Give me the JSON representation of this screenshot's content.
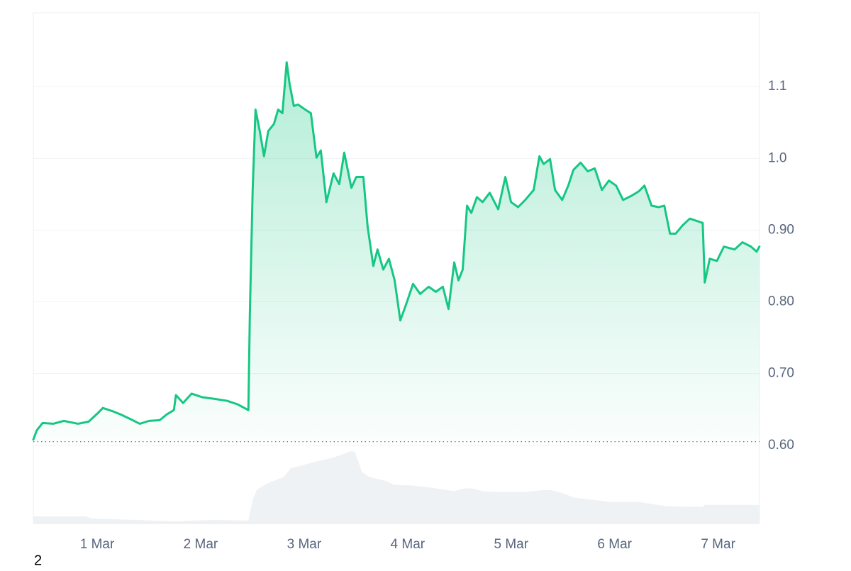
{
  "chart_data": {
    "type": "line",
    "xlim": [
      0.383,
      7.4
    ],
    "xticks": [
      {
        "value": 1,
        "label": "1 Mar"
      },
      {
        "value": 2,
        "label": "2 Mar"
      },
      {
        "value": 3,
        "label": "3 Mar"
      },
      {
        "value": 4,
        "label": "4 Mar"
      },
      {
        "value": 5,
        "label": "5 Mar"
      },
      {
        "value": 6,
        "label": "6 Mar"
      },
      {
        "value": 7,
        "label": "7 Mar"
      }
    ],
    "ylim": [
      0.49,
      1.2
    ],
    "yticks": [
      {
        "value": 0.6,
        "label": "0.60"
      },
      {
        "value": 0.7,
        "label": "0.70"
      },
      {
        "value": 0.8,
        "label": "0.80"
      },
      {
        "value": 0.9,
        "label": "0.90"
      },
      {
        "value": 1,
        "label": "1.0"
      },
      1.1
    ],
    "grid": true,
    "baseline": 0.605,
    "series": [
      {
        "color": "#16c784",
        "x": [
          0.383,
          0.417,
          0.472,
          0.575,
          0.678,
          0.815,
          0.918,
          1.0,
          1.055,
          1.158,
          1.226,
          1.329,
          1.412,
          1.501,
          1.604,
          1.672,
          1.741,
          1.761,
          1.83,
          1.912,
          2.015,
          2.118,
          2.255,
          2.358,
          2.461,
          2.475,
          2.502,
          2.53,
          2.571,
          2.612,
          2.653,
          2.708,
          2.749,
          2.79,
          2.831,
          2.859,
          2.9,
          2.941,
          3.01,
          3.065,
          3.119,
          3.161,
          3.215,
          3.284,
          3.339,
          3.387,
          3.421,
          3.456,
          3.504,
          3.572,
          3.613,
          3.668,
          3.709,
          3.764,
          3.819,
          3.874,
          3.929,
          3.984,
          4.052,
          4.121,
          4.203,
          4.272,
          4.34,
          4.395,
          4.45,
          4.491,
          4.532,
          4.574,
          4.615,
          4.669,
          4.724,
          4.793,
          4.875,
          4.944,
          4.999,
          5.067,
          5.136,
          5.218,
          5.273,
          5.314,
          5.376,
          5.424,
          5.493,
          5.552,
          5.602,
          5.671,
          5.74,
          5.808,
          5.877,
          5.945,
          6.014,
          6.082,
          6.165,
          6.233,
          6.288,
          6.357,
          6.425,
          6.48,
          6.535,
          6.59,
          6.659,
          6.727,
          6.851,
          6.871,
          6.919,
          6.988,
          7.056,
          7.159,
          7.235,
          7.317,
          7.372,
          7.399
        ],
        "values": [
          0.608,
          0.621,
          0.631,
          0.63,
          0.634,
          0.63,
          0.633,
          0.644,
          0.652,
          0.647,
          0.643,
          0.636,
          0.63,
          0.634,
          0.635,
          0.643,
          0.649,
          0.67,
          0.659,
          0.672,
          0.667,
          0.665,
          0.662,
          0.657,
          0.649,
          0.781,
          0.954,
          1.068,
          1.038,
          1.003,
          1.038,
          1.048,
          1.068,
          1.063,
          1.134,
          1.104,
          1.073,
          1.075,
          1.068,
          1.063,
          1.001,
          1.011,
          0.939,
          0.979,
          0.964,
          1.008,
          0.984,
          0.959,
          0.974,
          0.974,
          0.905,
          0.85,
          0.873,
          0.845,
          0.86,
          0.83,
          0.774,
          0.796,
          0.825,
          0.811,
          0.821,
          0.814,
          0.821,
          0.79,
          0.855,
          0.83,
          0.845,
          0.934,
          0.924,
          0.946,
          0.939,
          0.952,
          0.929,
          0.974,
          0.939,
          0.932,
          0.942,
          0.956,
          1.003,
          0.992,
          0.999,
          0.956,
          0.942,
          0.962,
          0.984,
          0.994,
          0.982,
          0.986,
          0.956,
          0.969,
          0.962,
          0.942,
          0.948,
          0.954,
          0.962,
          0.934,
          0.932,
          0.934,
          0.895,
          0.895,
          0.907,
          0.916,
          0.91,
          0.827,
          0.86,
          0.857,
          0.877,
          0.873,
          0.883,
          0.877,
          0.87,
          0.877
        ]
      },
      {
        "color": "#eff2f5",
        "x": [
          0.383,
          0.883,
          0.952,
          1.569,
          1.775,
          2.118,
          2.461,
          2.502,
          2.543,
          2.632,
          2.804,
          2.872,
          3.078,
          3.284,
          3.456,
          3.49,
          3.558,
          3.627,
          3.798,
          3.867,
          4.038,
          4.176,
          4.45,
          4.553,
          4.622,
          4.724,
          4.861,
          5.136,
          5.273,
          5.376,
          5.479,
          5.616,
          5.959,
          6.233,
          6.507,
          6.851,
          6.871,
          7.399
        ],
        "values": [
          0.501,
          0.501,
          0.498,
          0.495,
          0.494,
          0.496,
          0.495,
          0.524,
          0.538,
          0.546,
          0.556,
          0.568,
          0.576,
          0.583,
          0.592,
          0.591,
          0.563,
          0.556,
          0.55,
          0.545,
          0.544,
          0.542,
          0.536,
          0.54,
          0.54,
          0.536,
          0.535,
          0.535,
          0.537,
          0.538,
          0.534,
          0.527,
          0.521,
          0.521,
          0.515,
          0.514,
          0.517,
          0.517
        ]
      }
    ]
  },
  "page_label": "2"
}
